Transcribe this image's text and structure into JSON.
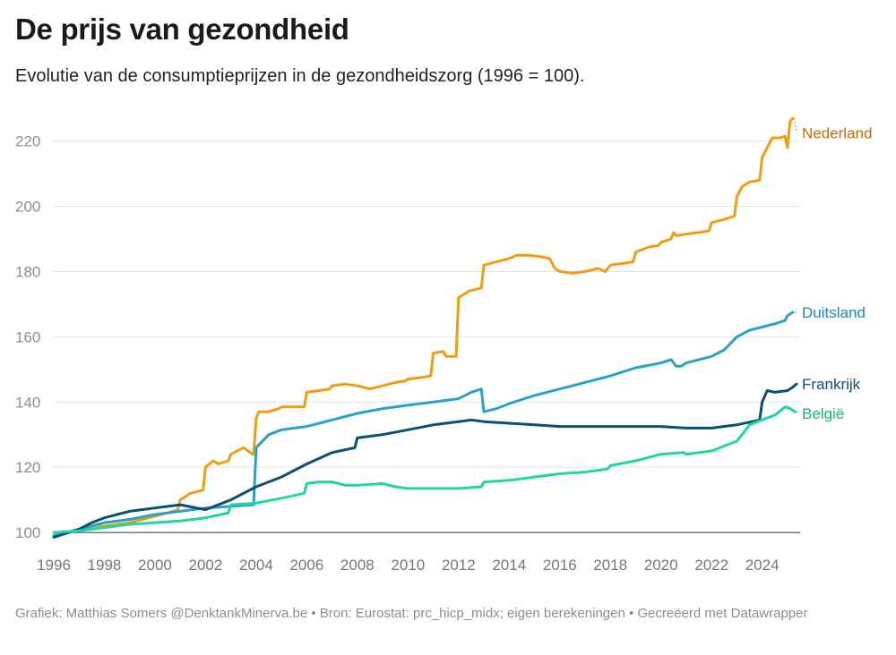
{
  "header": {
    "title": "De prijs van gezondheid",
    "subtitle": "Evolutie van de consumptieprijzen in de gezondheidszorg (1996 = 100)."
  },
  "footer": {
    "credit": "Grafiek: Matthias Somers @DenktankMinerva.be • Bron: Eurostat: prc_hicp_midx; eigen berekeningen • Gecreëerd met Datawrapper"
  },
  "chart_data": {
    "type": "line",
    "title": "De prijs van gezondheid",
    "subtitle": "Evolutie van de consumptieprijzen in de gezondheidszorg (1996 = 100).",
    "xlabel": "",
    "ylabel": "",
    "xlim": [
      1996,
      2025.5
    ],
    "ylim": [
      97,
      232
    ],
    "x_ticks": [
      1996,
      1998,
      2000,
      2002,
      2004,
      2006,
      2008,
      2010,
      2012,
      2014,
      2016,
      2018,
      2020,
      2022,
      2024
    ],
    "y_ticks": [
      100,
      120,
      140,
      160,
      180,
      200,
      220
    ],
    "grid": true,
    "legend": "direct labels at line ends (right)",
    "series": [
      {
        "name": "Nederland",
        "color": "#f39c12",
        "label_color": "#c96a00",
        "points": [
          [
            1996.0,
            99
          ],
          [
            1996.5,
            100
          ],
          [
            1997.0,
            101
          ],
          [
            1997.5,
            101.5
          ],
          [
            1998.0,
            102
          ],
          [
            1998.5,
            102.5
          ],
          [
            1999.0,
            103
          ],
          [
            1999.5,
            104
          ],
          [
            2000.0,
            105
          ],
          [
            2000.5,
            106
          ],
          [
            2000.9,
            107
          ],
          [
            2001.0,
            110
          ],
          [
            2001.4,
            112
          ],
          [
            2001.9,
            113
          ],
          [
            2002.0,
            120
          ],
          [
            2002.3,
            122
          ],
          [
            2002.5,
            121
          ],
          [
            2002.9,
            122
          ],
          [
            2003.0,
            124
          ],
          [
            2003.5,
            126
          ],
          [
            2003.85,
            124
          ],
          [
            2003.9,
            124
          ],
          [
            2004.0,
            135
          ],
          [
            2004.1,
            137
          ],
          [
            2004.5,
            137
          ],
          [
            2004.9,
            138
          ],
          [
            2005.0,
            138.5
          ],
          [
            2005.5,
            138.5
          ],
          [
            2005.9,
            138.5
          ],
          [
            2006.0,
            143
          ],
          [
            2006.5,
            143.5
          ],
          [
            2006.9,
            144
          ],
          [
            2007.0,
            145
          ],
          [
            2007.5,
            145.5
          ],
          [
            2008.0,
            145
          ],
          [
            2008.5,
            144
          ],
          [
            2009.0,
            145
          ],
          [
            2009.5,
            146
          ],
          [
            2009.9,
            146.5
          ],
          [
            2010.0,
            147
          ],
          [
            2010.5,
            147.5
          ],
          [
            2010.9,
            148
          ],
          [
            2011.0,
            155
          ],
          [
            2011.4,
            155.5
          ],
          [
            2011.5,
            154
          ],
          [
            2011.9,
            154
          ],
          [
            2012.0,
            172
          ],
          [
            2012.4,
            174
          ],
          [
            2012.9,
            175
          ],
          [
            2013.0,
            182
          ],
          [
            2013.5,
            183
          ],
          [
            2014.0,
            184
          ],
          [
            2014.3,
            185
          ],
          [
            2014.8,
            185
          ],
          [
            2015.3,
            184.5
          ],
          [
            2015.6,
            184
          ],
          [
            2015.8,
            181
          ],
          [
            2016.0,
            180
          ],
          [
            2016.5,
            179.5
          ],
          [
            2017.0,
            180
          ],
          [
            2017.5,
            181
          ],
          [
            2017.8,
            180
          ],
          [
            2018.0,
            182
          ],
          [
            2018.5,
            182.5
          ],
          [
            2018.9,
            183
          ],
          [
            2019.0,
            186
          ],
          [
            2019.5,
            187.5
          ],
          [
            2019.9,
            188
          ],
          [
            2020.0,
            189
          ],
          [
            2020.4,
            190
          ],
          [
            2020.5,
            192
          ],
          [
            2020.6,
            191
          ],
          [
            2021.0,
            191.5
          ],
          [
            2021.5,
            192
          ],
          [
            2021.9,
            192.5
          ],
          [
            2022.0,
            195
          ],
          [
            2022.5,
            196
          ],
          [
            2022.9,
            197
          ],
          [
            2023.0,
            203
          ],
          [
            2023.2,
            206
          ],
          [
            2023.5,
            207.5
          ],
          [
            2023.9,
            208
          ],
          [
            2024.0,
            215
          ],
          [
            2024.2,
            218
          ],
          [
            2024.4,
            221
          ],
          [
            2024.7,
            221
          ],
          [
            2024.9,
            221.5
          ],
          [
            2025.0,
            218
          ],
          [
            2025.1,
            226
          ],
          [
            2025.2,
            227
          ]
        ]
      },
      {
        "name": "Duitsland",
        "color": "#2ba0c8",
        "label_color": "#1a89b0",
        "points": [
          [
            1996.0,
            99
          ],
          [
            1997.0,
            101
          ],
          [
            1998.0,
            103
          ],
          [
            1999.0,
            104
          ],
          [
            2000.0,
            105.5
          ],
          [
            2001.0,
            106.5
          ],
          [
            2002.0,
            107.5
          ],
          [
            2003.0,
            108
          ],
          [
            2003.9,
            108.5
          ],
          [
            2004.0,
            126
          ],
          [
            2004.5,
            130
          ],
          [
            2005.0,
            131.5
          ],
          [
            2006.0,
            132.5
          ],
          [
            2007.0,
            134.5
          ],
          [
            2008.0,
            136.5
          ],
          [
            2009.0,
            138
          ],
          [
            2010.0,
            139
          ],
          [
            2011.0,
            140
          ],
          [
            2012.0,
            141
          ],
          [
            2012.5,
            143
          ],
          [
            2012.9,
            144
          ],
          [
            2013.0,
            137
          ],
          [
            2013.5,
            138
          ],
          [
            2014.0,
            139.5
          ],
          [
            2015.0,
            142
          ],
          [
            2016.0,
            144
          ],
          [
            2017.0,
            146
          ],
          [
            2018.0,
            148
          ],
          [
            2019.0,
            150.5
          ],
          [
            2020.0,
            152
          ],
          [
            2020.4,
            153
          ],
          [
            2020.6,
            151
          ],
          [
            2020.8,
            151
          ],
          [
            2021.0,
            152
          ],
          [
            2022.0,
            154
          ],
          [
            2022.5,
            156
          ],
          [
            2023.0,
            160
          ],
          [
            2023.5,
            162
          ],
          [
            2024.0,
            163
          ],
          [
            2024.5,
            164
          ],
          [
            2024.9,
            165
          ],
          [
            2025.0,
            166.5
          ],
          [
            2025.2,
            167.5
          ]
        ]
      },
      {
        "name": "Frankrijk",
        "color": "#0b4f73",
        "label_color": "#0b4f73",
        "points": [
          [
            1996.0,
            98.5
          ],
          [
            1997.0,
            101
          ],
          [
            1997.5,
            103
          ],
          [
            1998.0,
            104.5
          ],
          [
            1998.5,
            105.5
          ],
          [
            1999.0,
            106.5
          ],
          [
            2000.0,
            107.5
          ],
          [
            2001.0,
            108.5
          ],
          [
            2002.0,
            107
          ],
          [
            2003.0,
            110
          ],
          [
            2004.0,
            114
          ],
          [
            2005.0,
            117
          ],
          [
            2006.0,
            121
          ],
          [
            2007.0,
            124.5
          ],
          [
            2007.9,
            126
          ],
          [
            2008.0,
            129
          ],
          [
            2009.0,
            130
          ],
          [
            2010.0,
            131.5
          ],
          [
            2011.0,
            133
          ],
          [
            2012.0,
            134
          ],
          [
            2012.5,
            134.5
          ],
          [
            2013.0,
            134
          ],
          [
            2014.0,
            133.5
          ],
          [
            2015.0,
            133
          ],
          [
            2016.0,
            132.5
          ],
          [
            2017.0,
            132.5
          ],
          [
            2018.0,
            132.5
          ],
          [
            2019.0,
            132.5
          ],
          [
            2020.0,
            132.5
          ],
          [
            2021.0,
            132
          ],
          [
            2022.0,
            132
          ],
          [
            2023.0,
            133
          ],
          [
            2023.9,
            134.5
          ],
          [
            2024.0,
            140
          ],
          [
            2024.2,
            143.5
          ],
          [
            2024.5,
            143
          ],
          [
            2025.0,
            143.5
          ],
          [
            2025.2,
            144.5
          ],
          [
            2025.35,
            145.5
          ]
        ]
      },
      {
        "name": "België",
        "color": "#1fd6a4",
        "label_color": "#13b483",
        "points": [
          [
            1996.0,
            100
          ],
          [
            1997.0,
            100.5
          ],
          [
            1998.0,
            101.5
          ],
          [
            1999.0,
            102.5
          ],
          [
            2000.0,
            103
          ],
          [
            2001.0,
            103.5
          ],
          [
            2002.0,
            104.5
          ],
          [
            2002.9,
            106
          ],
          [
            2003.0,
            108.5
          ],
          [
            2004.0,
            109
          ],
          [
            2005.0,
            110.5
          ],
          [
            2005.9,
            112
          ],
          [
            2006.0,
            115
          ],
          [
            2006.5,
            115.5
          ],
          [
            2007.0,
            115.5
          ],
          [
            2007.5,
            114.5
          ],
          [
            2008.0,
            114.5
          ],
          [
            2009.0,
            115
          ],
          [
            2009.5,
            114
          ],
          [
            2010.0,
            113.5
          ],
          [
            2011.0,
            113.5
          ],
          [
            2012.0,
            113.5
          ],
          [
            2012.9,
            114
          ],
          [
            2013.0,
            115.5
          ],
          [
            2014.0,
            116
          ],
          [
            2015.0,
            117
          ],
          [
            2016.0,
            118
          ],
          [
            2017.0,
            118.5
          ],
          [
            2017.9,
            119.5
          ],
          [
            2018.0,
            120.5
          ],
          [
            2019.0,
            122
          ],
          [
            2020.0,
            124
          ],
          [
            2020.9,
            124.5
          ],
          [
            2021.0,
            124
          ],
          [
            2021.5,
            124.5
          ],
          [
            2022.0,
            125
          ],
          [
            2022.5,
            126.5
          ],
          [
            2023.0,
            128
          ],
          [
            2023.3,
            131
          ],
          [
            2023.5,
            133
          ],
          [
            2024.0,
            134.5
          ],
          [
            2024.5,
            136
          ],
          [
            2024.9,
            138.5
          ],
          [
            2025.1,
            138
          ],
          [
            2025.3,
            137
          ]
        ]
      }
    ]
  }
}
